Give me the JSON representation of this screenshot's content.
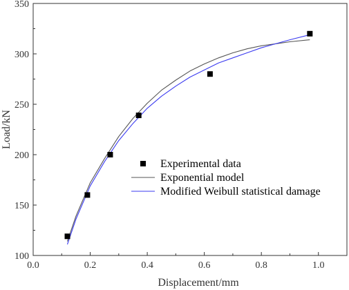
{
  "chart_data": {
    "type": "line",
    "xlabel": "Displacement/mm",
    "ylabel": "Load/kN",
    "xlim": [
      0.0,
      1.1
    ],
    "ylim": [
      100,
      350
    ],
    "x_ticks": [
      0.0,
      0.2,
      0.4,
      0.6,
      0.8,
      1.0
    ],
    "x_tick_labels": [
      "0.0",
      "0.2",
      "0.4",
      "0.6",
      "0.8",
      "1.0"
    ],
    "y_ticks": [
      100,
      150,
      200,
      250,
      300,
      350
    ],
    "y_tick_labels": [
      "100",
      "150",
      "200",
      "250",
      "300",
      "350"
    ],
    "grid": false,
    "legend_position": "center-right",
    "series": [
      {
        "name": "Experimental data",
        "kind": "scatter",
        "marker": "square",
        "color": "#000000",
        "x": [
          0.12,
          0.19,
          0.27,
          0.37,
          0.62,
          0.97
        ],
        "y": [
          119,
          160,
          200,
          239,
          280,
          320
        ]
      },
      {
        "name": "Exponential model",
        "kind": "line",
        "color": "#555555",
        "x": [
          0.12,
          0.15,
          0.2,
          0.25,
          0.3,
          0.35,
          0.4,
          0.45,
          0.5,
          0.55,
          0.6,
          0.65,
          0.7,
          0.75,
          0.8,
          0.85,
          0.9,
          0.97
        ],
        "y": [
          114,
          139,
          172,
          196,
          218,
          236,
          251,
          264,
          274,
          283,
          290,
          296,
          301,
          305,
          308,
          310,
          312,
          314
        ]
      },
      {
        "name": "Modified Weibull statistical damage",
        "kind": "line",
        "color": "#3a3af0",
        "x": [
          0.12,
          0.15,
          0.2,
          0.25,
          0.3,
          0.35,
          0.4,
          0.45,
          0.5,
          0.55,
          0.6,
          0.65,
          0.7,
          0.75,
          0.8,
          0.85,
          0.9,
          0.97
        ],
        "y": [
          111,
          136,
          169,
          193,
          214,
          231,
          246,
          258,
          268,
          277,
          284,
          291,
          296,
          301,
          306,
          310,
          314,
          319
        ]
      }
    ]
  }
}
